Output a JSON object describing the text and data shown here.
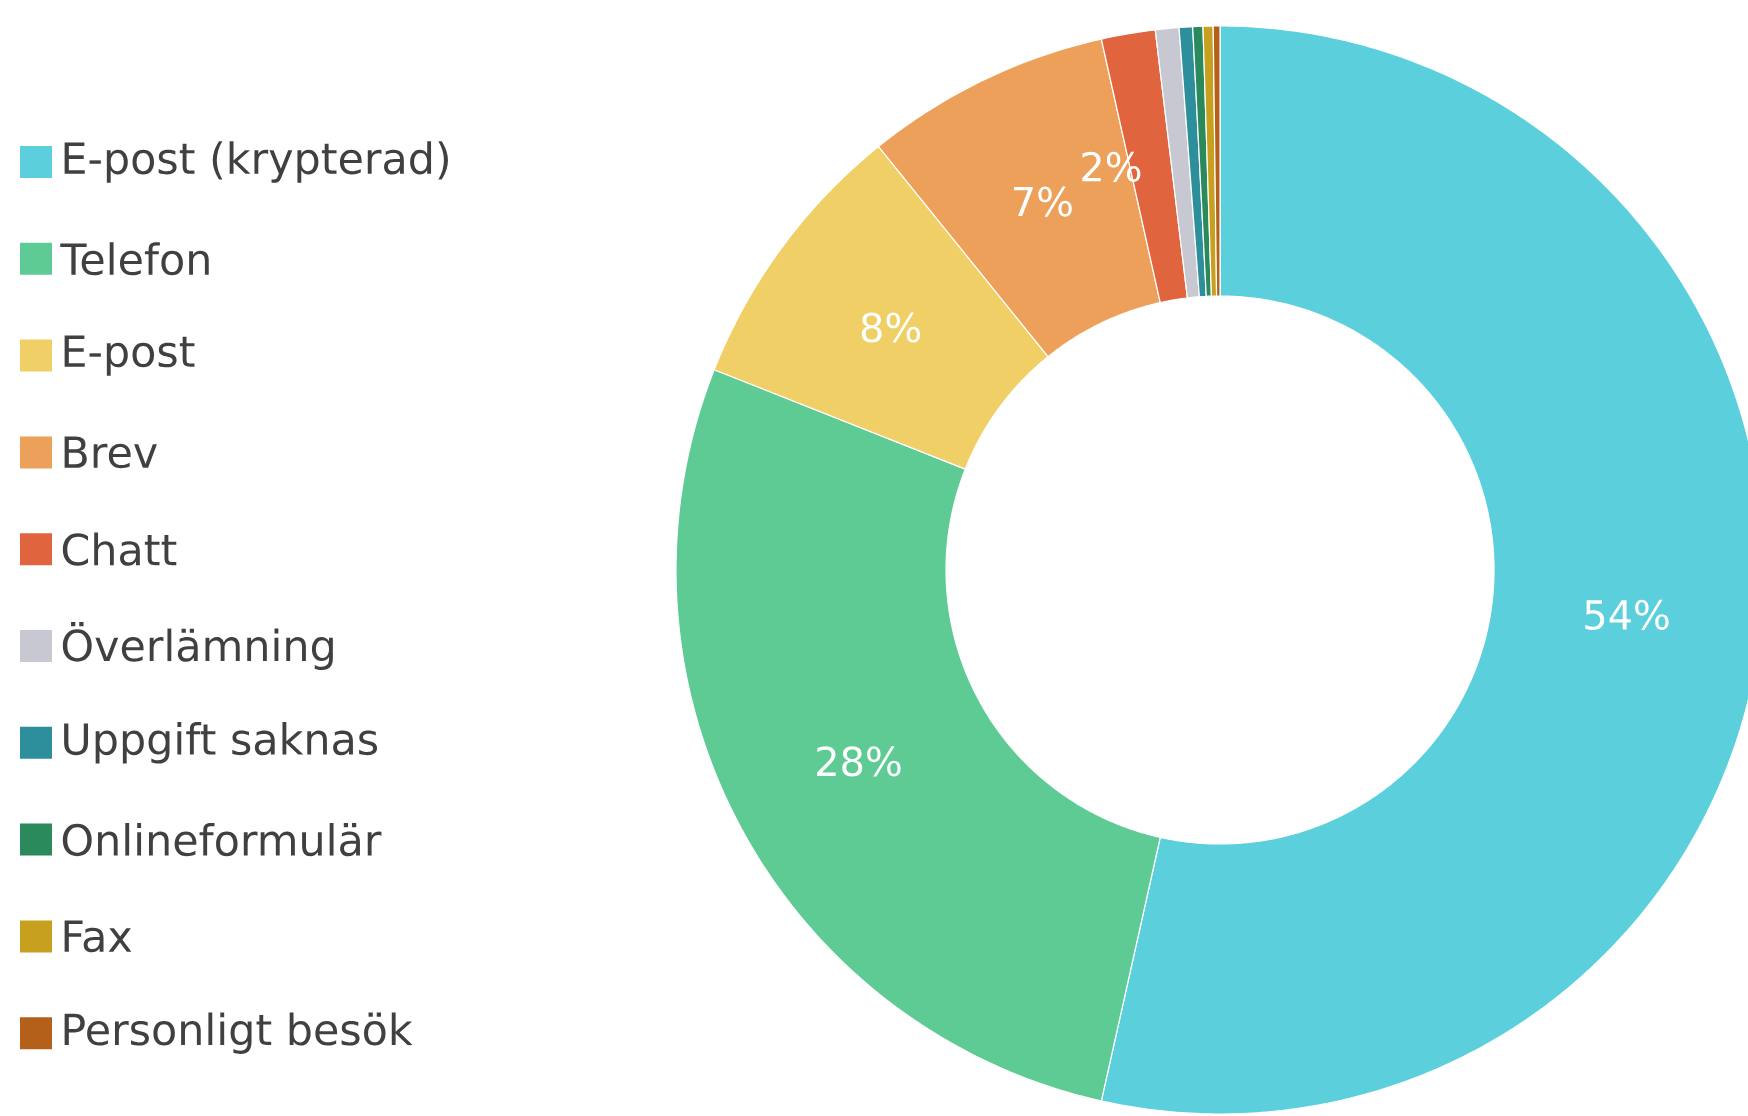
{
  "chart_data": {
    "type": "donut",
    "legend": "left",
    "categories": [
      "E-post (krypterad)",
      "Telefon",
      "E-post",
      "Brev",
      "Chatt",
      "Överlämning",
      "Uppgift saknas",
      "Onlineformulär",
      "Fax",
      "Personligt besök"
    ],
    "values": [
      53.5,
      27.5,
      8.2,
      7.3,
      1.6,
      0.7,
      0.4,
      0.3,
      0.3,
      0.2
    ],
    "value_labels": [
      "54%",
      "28%",
      "8%",
      "7%",
      "2%",
      null,
      null,
      null,
      null,
      null
    ],
    "colors": [
      "#5bcfdc",
      "#5fcb94",
      "#f0cf66",
      "#eca05a",
      "#e0653e",
      "#c8c8d2",
      "#2d8f9c",
      "#2a8a5c",
      "#c8a020",
      "#b5601a"
    ]
  }
}
